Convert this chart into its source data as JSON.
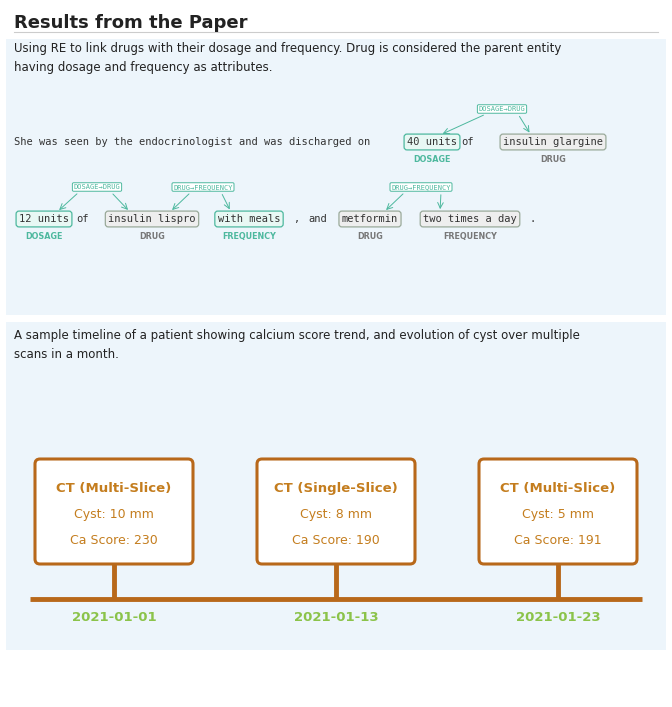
{
  "title": "Results from the Paper",
  "title_fontsize": 13,
  "background_color": "#ffffff",
  "section1_bg": "#edf5fb",
  "section2_bg": "#edf5fb",
  "section1_text": "Using RE to link drugs with their dosage and frequency. Drug is considered the parent entity\nhaving dosage and frequency as attributes.",
  "section2_text": "A sample timeline of a patient showing calcium score trend, and evolution of cyst over multiple\nscans in a month.",
  "entity_border_green": "#4db89e",
  "entity_border_gray": "#9aaa9a",
  "arrow_color": "#4db89e",
  "entity_fill_green": "#e8f8f4",
  "entity_fill_gray": "#eeeeee",
  "label_teal": "#4db89e",
  "label_gray": "#777777",
  "rel_color": "#4db89e",
  "timeline_box_bg": "#ffffff",
  "timeline_box_border": "#b8681a",
  "timeline_box_text": "#c47d1e",
  "timeline_line_color": "#b8681a",
  "timeline_date_color": "#8bc34a",
  "timeline_events": [
    {
      "date": "2021-01-01",
      "title": "CT (Multi-Slice)",
      "cyst": "Cyst: 10 mm",
      "ca": "Ca Score: 230"
    },
    {
      "date": "2021-01-13",
      "title": "CT (Single-Slice)",
      "cyst": "Cyst: 8 mm",
      "ca": "Ca Score: 190"
    },
    {
      "date": "2021-01-23",
      "title": "CT (Multi-Slice)",
      "cyst": "Cyst: 5 mm",
      "ca": "Ca Score: 191"
    }
  ]
}
